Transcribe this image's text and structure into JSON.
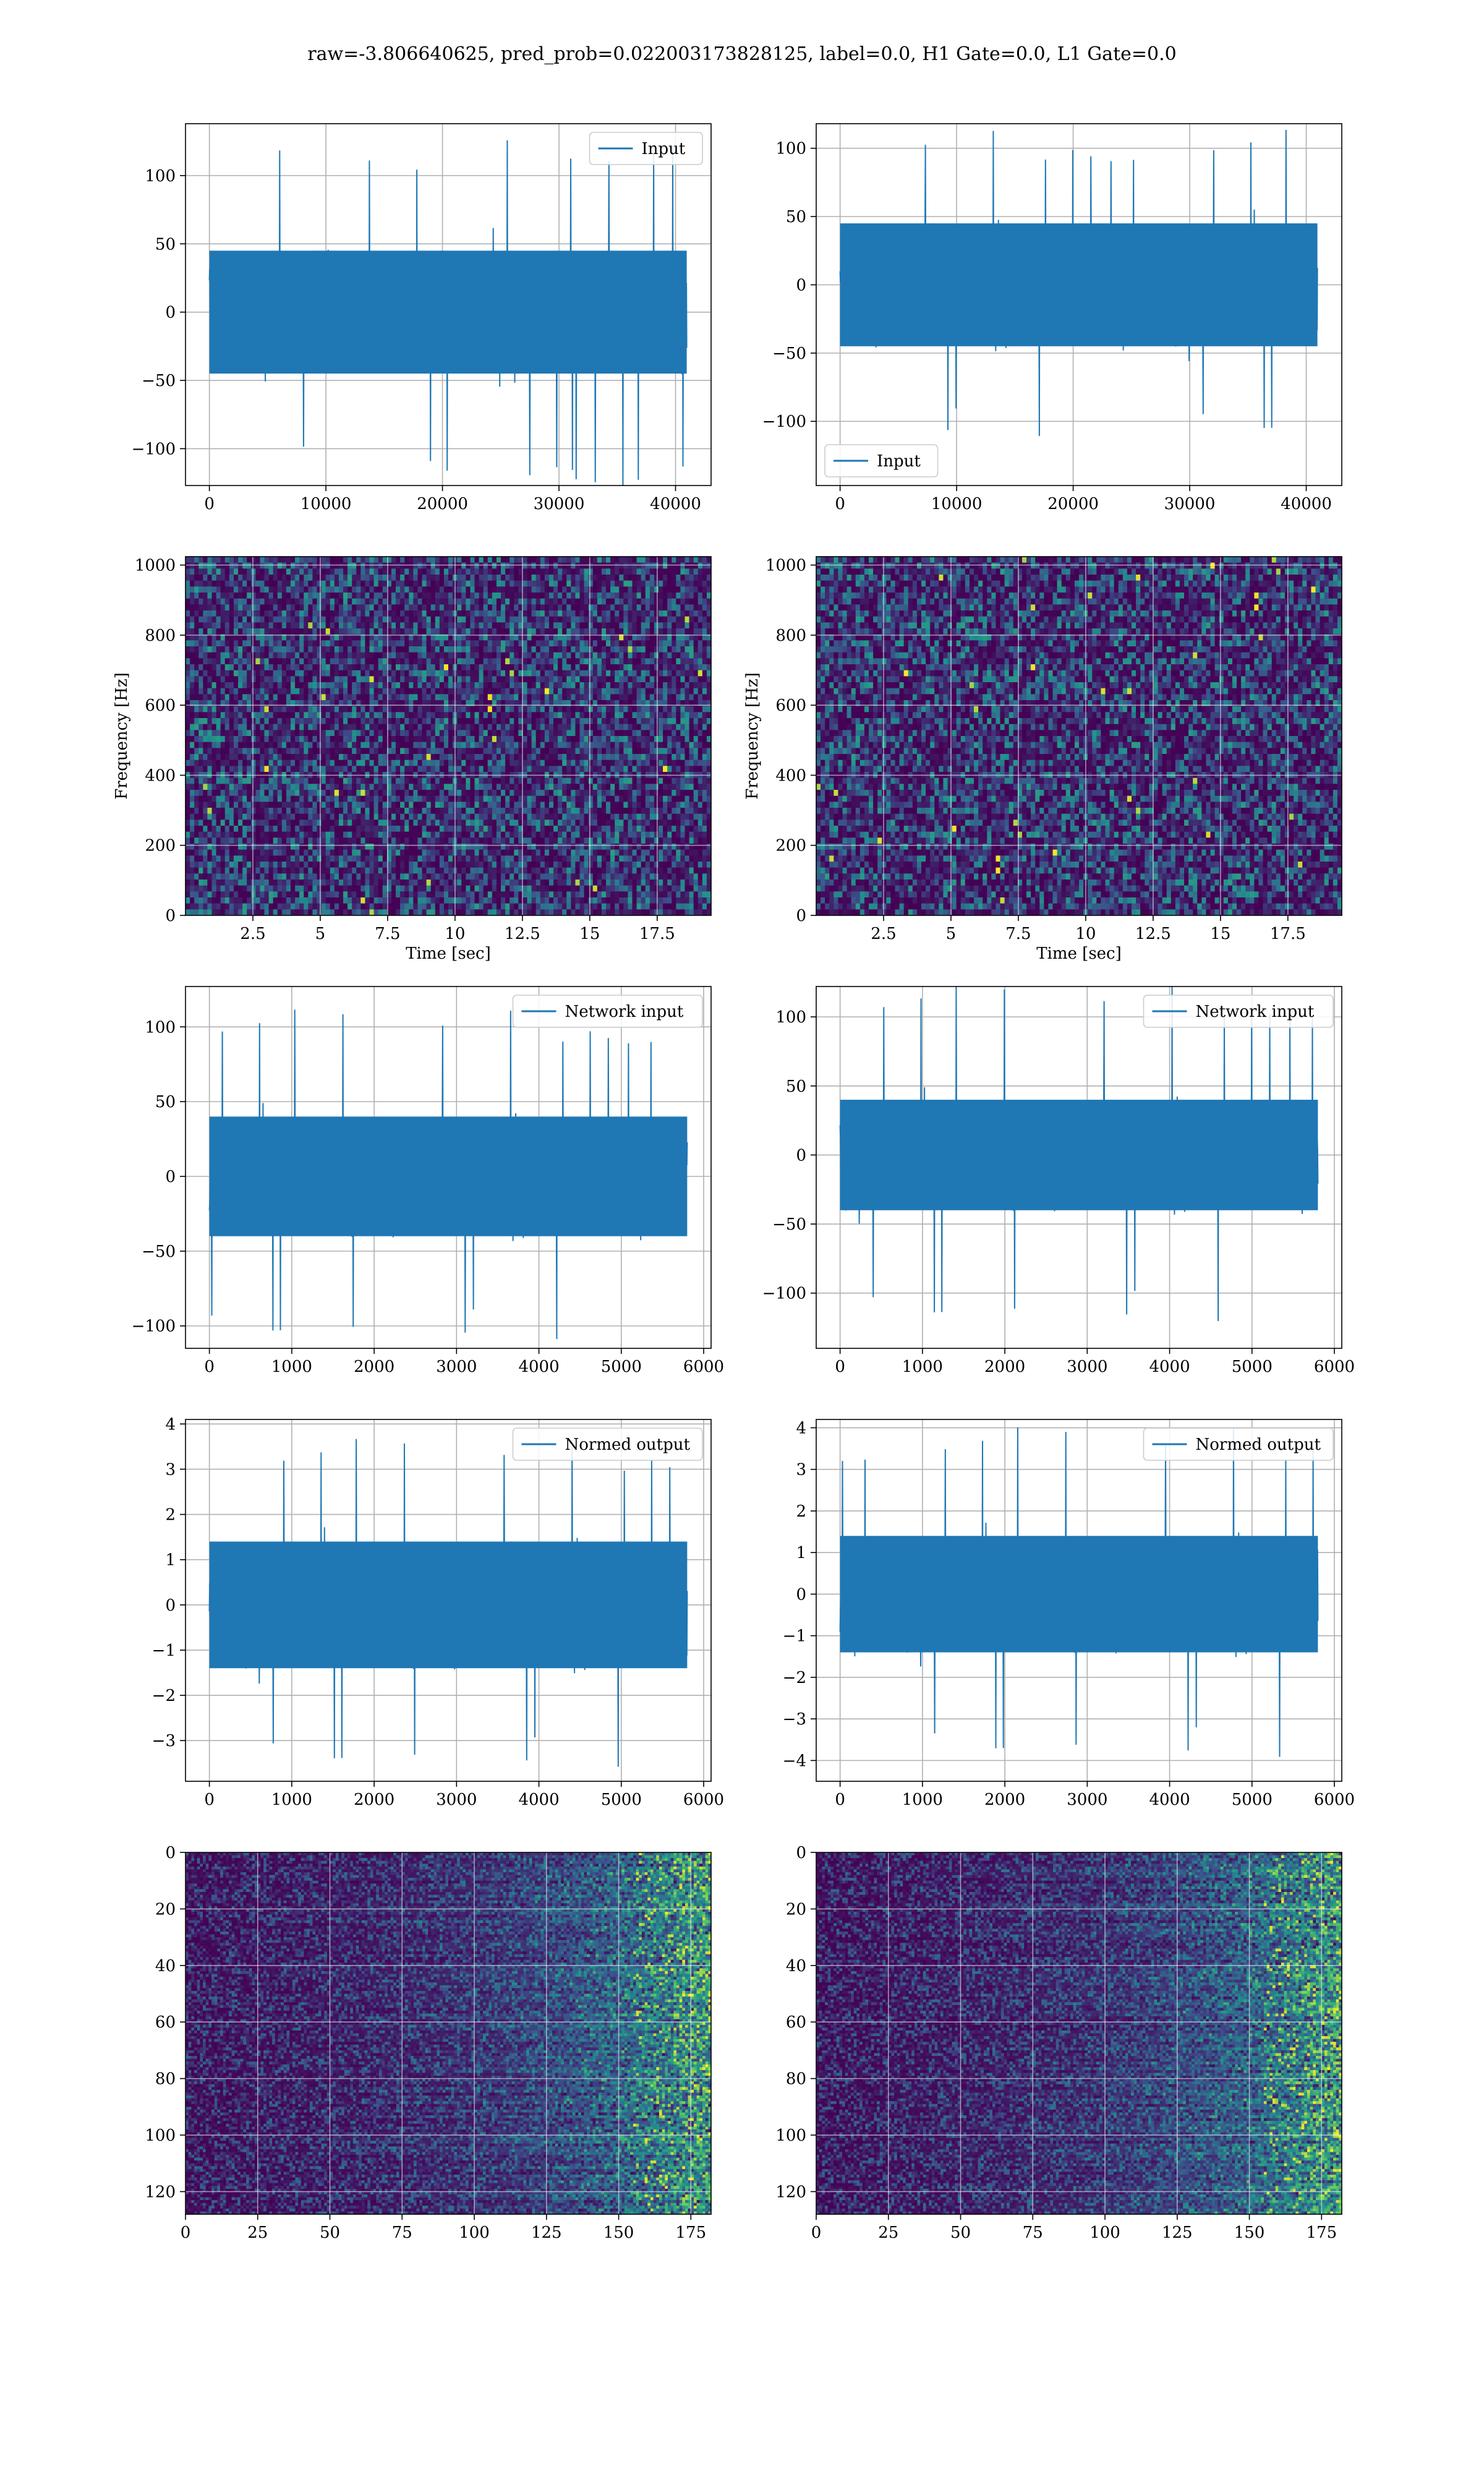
{
  "figure": {
    "title": "raw=-3.806640625, pred_prob=0.022003173828125, label=0.0, H1 Gate=0.0, L1 Gate=0.0"
  },
  "colors": {
    "series": "#1f77b4",
    "grid": "#b0b0b0",
    "viridis_low": "#440154",
    "viridis_mid": "#21918c",
    "viridis_high": "#fde725"
  },
  "chart_data": [
    {
      "id": "r1c1",
      "type": "line",
      "row": 0,
      "col": 0,
      "title": "",
      "xlabel": "",
      "ylabel": "",
      "xlim": [
        -2050,
        43050
      ],
      "ylim": [
        -127,
        138
      ],
      "xticks": [
        0,
        10000,
        20000,
        30000,
        40000
      ],
      "yticks": [
        -100,
        -50,
        0,
        50,
        100
      ],
      "legend": "top-right",
      "grid": true,
      "series": [
        {
          "name": "Input",
          "x_range": [
            0,
            40960
          ],
          "amplitude_typical": 45,
          "amplitude_peak": 128
        }
      ]
    },
    {
      "id": "r1c2",
      "type": "line",
      "row": 0,
      "col": 1,
      "title": "",
      "xlabel": "",
      "ylabel": "",
      "xlim": [
        -2050,
        43050
      ],
      "ylim": [
        -147,
        118
      ],
      "xticks": [
        0,
        10000,
        20000,
        30000,
        40000
      ],
      "yticks": [
        -100,
        -50,
        0,
        50,
        100
      ],
      "legend": "bottom-left",
      "grid": true,
      "series": [
        {
          "name": "Input",
          "x_range": [
            0,
            40960
          ],
          "amplitude_typical": 45,
          "amplitude_peak": 116
        }
      ]
    },
    {
      "id": "r2c1",
      "type": "heatmap",
      "row": 1,
      "col": 0,
      "title": "",
      "xlabel": "Time [sec]",
      "ylabel": "Frequency [Hz]",
      "xlim": [
        0,
        19.5
      ],
      "ylim": [
        0,
        1024
      ],
      "xticks": [
        2.5,
        5.0,
        7.5,
        10.0,
        12.5,
        15.0,
        17.5
      ],
      "yticks": [
        0,
        200,
        400,
        600,
        800,
        1000
      ],
      "grid": true
    },
    {
      "id": "r2c2",
      "type": "heatmap",
      "row": 1,
      "col": 1,
      "title": "",
      "xlabel": "Time [sec]",
      "ylabel": "Frequency [Hz]",
      "xlim": [
        0,
        19.5
      ],
      "ylim": [
        0,
        1024
      ],
      "xticks": [
        2.5,
        5.0,
        7.5,
        10.0,
        12.5,
        15.0,
        17.5
      ],
      "yticks": [
        0,
        200,
        400,
        600,
        800,
        1000
      ],
      "grid": true
    },
    {
      "id": "r3c1",
      "type": "line",
      "row": 2,
      "col": 0,
      "title": "",
      "xlabel": "",
      "ylabel": "",
      "xlim": [
        -290,
        6090
      ],
      "ylim": [
        -115,
        127
      ],
      "xticks": [
        0,
        1000,
        2000,
        3000,
        4000,
        5000,
        6000
      ],
      "yticks": [
        -100,
        -50,
        0,
        50,
        100
      ],
      "legend": "top-right",
      "grid": true,
      "series": [
        {
          "name": "Network input",
          "x_range": [
            0,
            5800
          ],
          "amplitude_typical": 40,
          "amplitude_peak": 114
        }
      ]
    },
    {
      "id": "r3c2",
      "type": "line",
      "row": 2,
      "col": 1,
      "title": "",
      "xlabel": "",
      "ylabel": "",
      "xlim": [
        -290,
        6090
      ],
      "ylim": [
        -140,
        122
      ],
      "xticks": [
        0,
        1000,
        2000,
        3000,
        4000,
        5000,
        6000
      ],
      "yticks": [
        -100,
        -50,
        0,
        50,
        100
      ],
      "legend": "top-right",
      "grid": true,
      "series": [
        {
          "name": "Network input",
          "x_range": [
            0,
            5800
          ],
          "amplitude_typical": 40,
          "amplitude_peak": 126
        }
      ]
    },
    {
      "id": "r4c1",
      "type": "line",
      "row": 3,
      "col": 0,
      "title": "",
      "xlabel": "",
      "ylabel": "",
      "xlim": [
        -290,
        6090
      ],
      "ylim": [
        -3.9,
        4.1
      ],
      "xticks": [
        0,
        1000,
        2000,
        3000,
        4000,
        5000,
        6000
      ],
      "yticks": [
        -3,
        -2,
        -1,
        0,
        1,
        2,
        3,
        4
      ],
      "legend": "top-right",
      "grid": true,
      "series": [
        {
          "name": "Normed output",
          "x_range": [
            0,
            5800
          ],
          "amplitude_typical": 1.4,
          "amplitude_peak": 3.75
        }
      ]
    },
    {
      "id": "r4c2",
      "type": "line",
      "row": 3,
      "col": 1,
      "title": "",
      "xlabel": "",
      "ylabel": "",
      "xlim": [
        -290,
        6090
      ],
      "ylim": [
        -4.5,
        4.2
      ],
      "xticks": [
        0,
        1000,
        2000,
        3000,
        4000,
        5000,
        6000
      ],
      "yticks": [
        -4,
        -3,
        -2,
        -1,
        0,
        1,
        2,
        3,
        4
      ],
      "legend": "top-right",
      "grid": true,
      "series": [
        {
          "name": "Normed output",
          "x_range": [
            0,
            5800
          ],
          "amplitude_typical": 1.4,
          "amplitude_peak": 4.1
        }
      ]
    },
    {
      "id": "r5c1",
      "type": "heatmap",
      "row": 4,
      "col": 0,
      "title": "",
      "xlabel": "",
      "ylabel": "",
      "xlim": [
        0,
        182
      ],
      "ylim": [
        128,
        0
      ],
      "xticks": [
        0,
        25,
        50,
        75,
        100,
        125,
        150,
        175
      ],
      "yticks": [
        0,
        20,
        40,
        60,
        80,
        100,
        120
      ],
      "grid": true
    },
    {
      "id": "r5c2",
      "type": "heatmap",
      "row": 4,
      "col": 1,
      "title": "",
      "xlabel": "",
      "ylabel": "",
      "xlim": [
        0,
        182
      ],
      "ylim": [
        128,
        0
      ],
      "xticks": [
        0,
        25,
        50,
        75,
        100,
        125,
        150,
        175
      ],
      "yticks": [
        0,
        20,
        40,
        60,
        80,
        100,
        120
      ],
      "grid": true
    }
  ]
}
